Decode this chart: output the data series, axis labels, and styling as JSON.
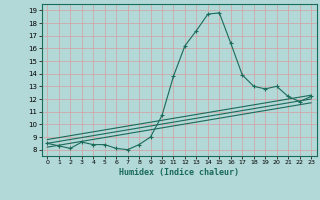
{
  "title": "",
  "xlabel": "Humidex (Indice chaleur)",
  "background_color": "#b2d8d8",
  "grid_color": "#c8e8e8",
  "line_color": "#1a6b5a",
  "xlim": [
    -0.5,
    23.5
  ],
  "ylim": [
    7.5,
    19.5
  ],
  "xticks": [
    0,
    1,
    2,
    3,
    4,
    5,
    6,
    7,
    8,
    9,
    10,
    11,
    12,
    13,
    14,
    15,
    16,
    17,
    18,
    19,
    20,
    21,
    22,
    23
  ],
  "yticks": [
    8,
    9,
    10,
    11,
    12,
    13,
    14,
    15,
    16,
    17,
    18,
    19
  ],
  "main_x": [
    0,
    1,
    2,
    3,
    4,
    5,
    6,
    7,
    8,
    9,
    10,
    11,
    12,
    13,
    14,
    15,
    16,
    17,
    18,
    19,
    20,
    21,
    22,
    23
  ],
  "main_y": [
    8.5,
    8.3,
    8.1,
    8.6,
    8.4,
    8.4,
    8.1,
    8.0,
    8.4,
    9.0,
    10.7,
    13.8,
    16.2,
    17.4,
    18.7,
    18.8,
    16.4,
    13.9,
    13.0,
    12.8,
    13.0,
    12.2,
    11.8,
    12.2
  ],
  "line1_x": [
    0,
    23
  ],
  "line1_y": [
    8.8,
    12.3
  ],
  "line2_x": [
    0,
    23
  ],
  "line2_y": [
    8.5,
    12.0
  ],
  "line3_x": [
    0,
    23
  ],
  "line3_y": [
    8.2,
    11.7
  ]
}
